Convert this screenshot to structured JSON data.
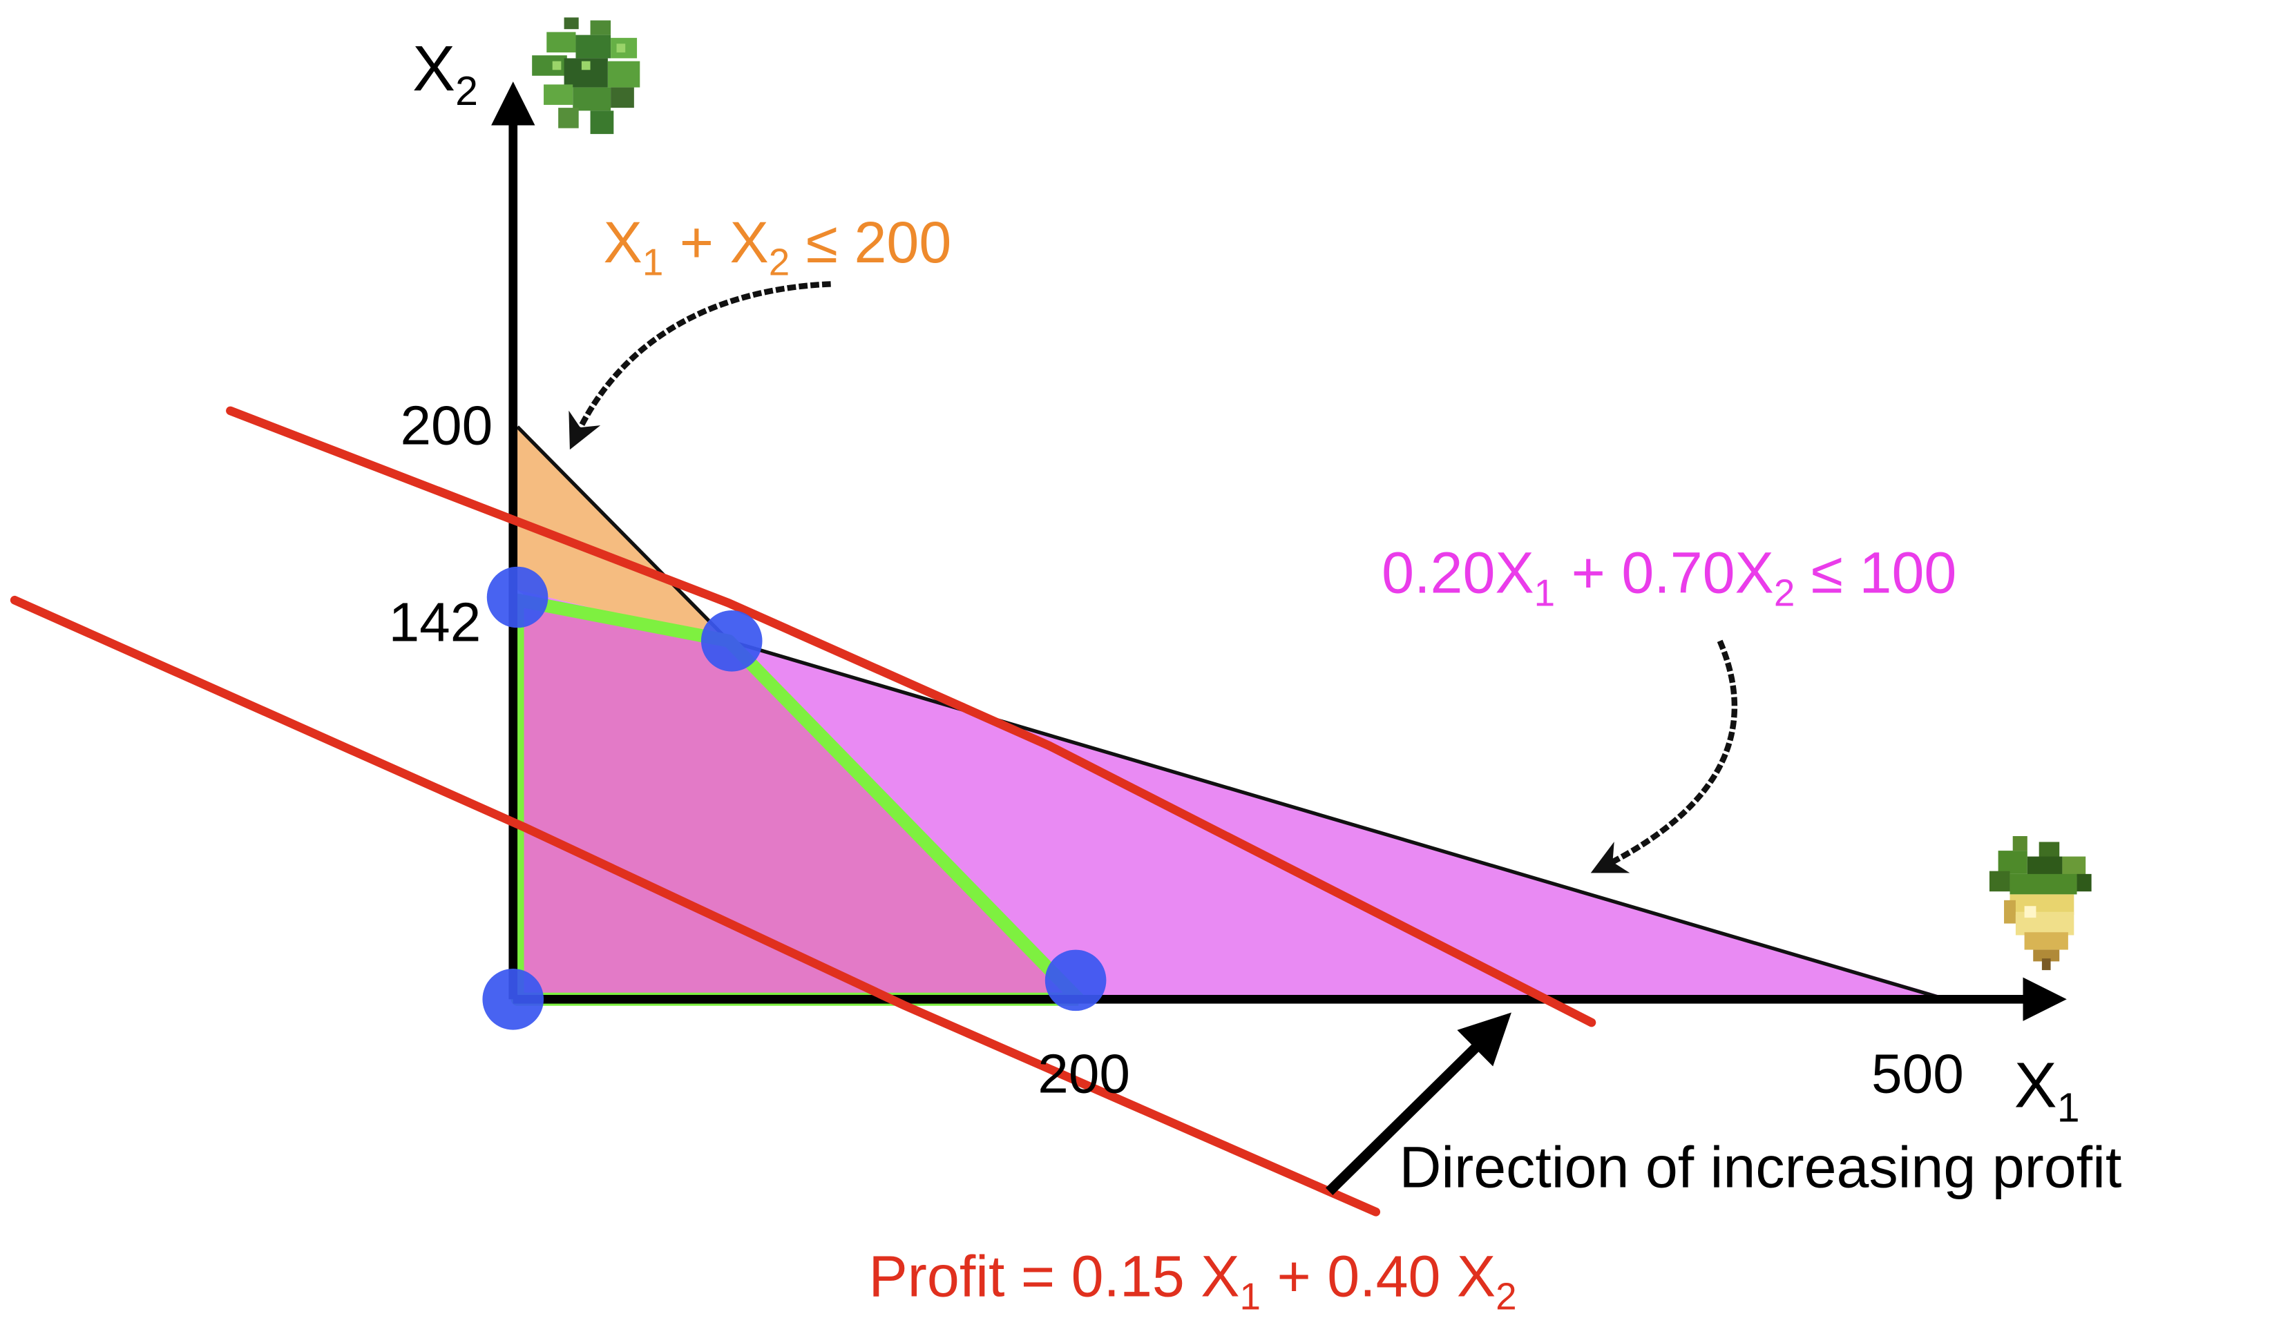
{
  "axes": {
    "x_label": "X",
    "x_sub": "1",
    "y_label": "X",
    "y_sub": "2"
  },
  "ticks": {
    "y_200": "200",
    "y_142": "142",
    "x_200": "200",
    "x_500": "500"
  },
  "constraint1": {
    "a": "X",
    "a_sub": "1",
    "plus": " + X",
    "b_sub": "2",
    "rhs": " ≤ 200",
    "color": "#ee8a2c"
  },
  "constraint2": {
    "a": "0.20X",
    "a_sub": "1",
    "plus": " + 0.70X",
    "b_sub": "2",
    "rhs": " ≤ 100",
    "color": "#ea3cea"
  },
  "profit": {
    "a": "Profit = 0.15 X",
    "a_sub": "1",
    "plus": " + 0.40 X",
    "b_sub": "2",
    "color": "#e0301e"
  },
  "direction_label": "Direction of increasing profit",
  "colors": {
    "orange_fill": "#f5bc80",
    "magenta_fill": "#e98af3",
    "pink_fill": "#e37ac7",
    "feasible_edge": "#7ef040",
    "vertex": "#3a57f0",
    "profit_line": "#e0301e",
    "axis": "#000000"
  },
  "icons": [
    "leaf-plant-icon",
    "turnip-icon"
  ]
}
